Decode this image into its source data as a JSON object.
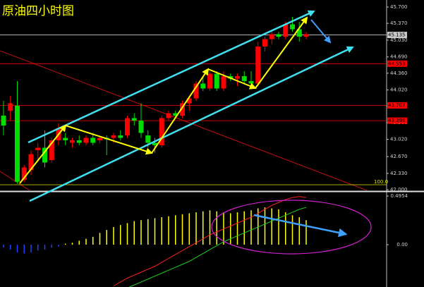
{
  "chart_data": {
    "type": "candlestick",
    "title": "原油四小时图",
    "up_color": "#ff0000",
    "down_color": "#00dd00",
    "open": [
      43.5,
      43.6,
      43.7,
      42.2,
      42.4,
      42.8,
      42.85,
      42.6,
      43.0,
      43.05,
      42.95,
      43.0,
      42.95,
      43.05,
      43.0,
      43.05,
      43.05,
      43.1,
      43.1,
      43.45,
      43.4,
      43.1,
      42.95,
      42.9,
      43.45,
      43.55,
      43.5,
      43.75,
      43.85,
      44.15,
      44.05,
      44.35,
      44.05,
      44.3,
      44.25,
      44.3,
      44.2,
      44.15,
      44.9,
      45.05,
      45.15,
      45.1,
      45.35,
      45.25,
      45.1
    ],
    "high": [
      43.8,
      43.9,
      44.2,
      42.5,
      42.8,
      42.95,
      43.2,
      43.05,
      43.35,
      43.15,
      43.05,
      43.1,
      43.1,
      43.15,
      43.1,
      43.1,
      43.15,
      43.2,
      43.5,
      43.55,
      43.75,
      43.2,
      43.05,
      43.5,
      43.6,
      43.6,
      43.8,
      43.9,
      44.2,
      44.3,
      44.4,
      44.4,
      44.4,
      44.35,
      44.35,
      44.4,
      44.4,
      45.0,
      45.1,
      45.2,
      45.2,
      45.4,
      45.5,
      45.4,
      45.2
    ],
    "low": [
      43.1,
      43.4,
      42.12,
      42.15,
      42.3,
      42.6,
      42.45,
      42.55,
      42.9,
      42.9,
      42.85,
      42.9,
      42.9,
      42.9,
      42.95,
      42.7,
      42.95,
      43.0,
      43.05,
      43.3,
      43.05,
      42.85,
      42.75,
      42.85,
      43.4,
      43.45,
      43.45,
      43.6,
      43.8,
      44.0,
      44.0,
      44.0,
      44.0,
      44.2,
      44.1,
      44.15,
      44.05,
      44.1,
      44.8,
      44.95,
      45.05,
      45.05,
      45.2,
      45.0,
      45.05
    ],
    "close": [
      43.3,
      43.75,
      42.16,
      42.45,
      42.72,
      42.85,
      42.55,
      43.0,
      43.25,
      43.0,
      43.0,
      42.95,
      43.05,
      42.95,
      43.05,
      43.02,
      43.1,
      43.05,
      43.45,
      43.4,
      43.15,
      42.95,
      42.9,
      43.45,
      43.55,
      43.5,
      43.75,
      43.85,
      44.15,
      44.05,
      44.35,
      44.05,
      44.3,
      44.25,
      44.3,
      44.2,
      44.15,
      44.9,
      45.05,
      45.15,
      45.1,
      45.35,
      45.25,
      45.1,
      45.15
    ],
    "ylim": [
      42.0,
      45.7
    ],
    "yticks": [
      {
        "value": 45.7,
        "label": "45.700"
      },
      {
        "value": 45.37,
        "label": "45.370"
      },
      {
        "value": 45.03,
        "label": "45.030"
      },
      {
        "value": 44.69,
        "label": "44.690"
      },
      {
        "value": 44.36,
        "label": "44.360"
      },
      {
        "value": 44.02,
        "label": "44.020"
      },
      {
        "value": 43.69,
        "label": "43.690"
      },
      {
        "value": 43.36,
        "label": "43.360"
      },
      {
        "value": 43.02,
        "label": "43.020"
      },
      {
        "value": 42.67,
        "label": "42.670"
      },
      {
        "value": 42.33,
        "label": "42.330"
      },
      {
        "value": 42.0,
        "label": "42.000"
      }
    ],
    "levels": [
      {
        "value": 45.135,
        "color": "#c8c8c8"
      },
      {
        "value": 44.553,
        "color": "#ff0000"
      },
      {
        "value": 43.707,
        "color": "#ff0000"
      },
      {
        "value": 43.398,
        "color": "#ff0000"
      }
    ],
    "fib_level": {
      "label": "100.0",
      "price": 42.1,
      "color": "#e0e000"
    },
    "indicator": {
      "histogram": [
        -0.03,
        -0.05,
        -0.08,
        -0.09,
        -0.08,
        -0.06,
        -0.05,
        -0.03,
        -0.02,
        0.01,
        0.02,
        0.04,
        0.06,
        0.08,
        0.12,
        0.15,
        0.18,
        0.2,
        0.22,
        0.24,
        0.25,
        0.26,
        0.27,
        0.28,
        0.29,
        0.3,
        0.31,
        0.32,
        0.33,
        0.34,
        0.35,
        0.34,
        0.33,
        0.32,
        0.33,
        0.34,
        0.35,
        0.37,
        0.38,
        0.37,
        0.36,
        0.33,
        0.3,
        0.28,
        0.25
      ],
      "positive_color": "#ffff00",
      "negative_color": "#2040ff",
      "series": [
        {
          "color": "#ff2020",
          "values": [
            null,
            null,
            null,
            null,
            null,
            null,
            null,
            null,
            null,
            null,
            null,
            null,
            null,
            null,
            null,
            null,
            -0.42,
            -0.38,
            -0.34,
            -0.31,
            -0.28,
            -0.25,
            -0.22,
            -0.18,
            -0.14,
            -0.1,
            -0.06,
            -0.02,
            0.02,
            0.06,
            0.1,
            0.13,
            0.16,
            0.19,
            0.22,
            0.25,
            0.28,
            0.32,
            0.36,
            0.4,
            0.43,
            0.46,
            0.48,
            0.49,
            0.48
          ]
        },
        {
          "color": "#20d020",
          "values": [
            null,
            null,
            null,
            null,
            null,
            null,
            null,
            null,
            null,
            null,
            null,
            null,
            null,
            null,
            null,
            null,
            null,
            null,
            -0.44,
            -0.41,
            -0.38,
            -0.35,
            -0.32,
            -0.29,
            -0.26,
            -0.23,
            -0.2,
            -0.17,
            -0.13,
            -0.09,
            -0.05,
            -0.01,
            0.03,
            0.06,
            0.09,
            0.12,
            0.15,
            0.18,
            0.21,
            0.24,
            0.27,
            0.3,
            0.33,
            0.36,
            0.38
          ]
        }
      ],
      "yticks": [
        0.4954,
        {
          "value": 0,
          "label": "0.00"
        }
      ]
    }
  }
}
